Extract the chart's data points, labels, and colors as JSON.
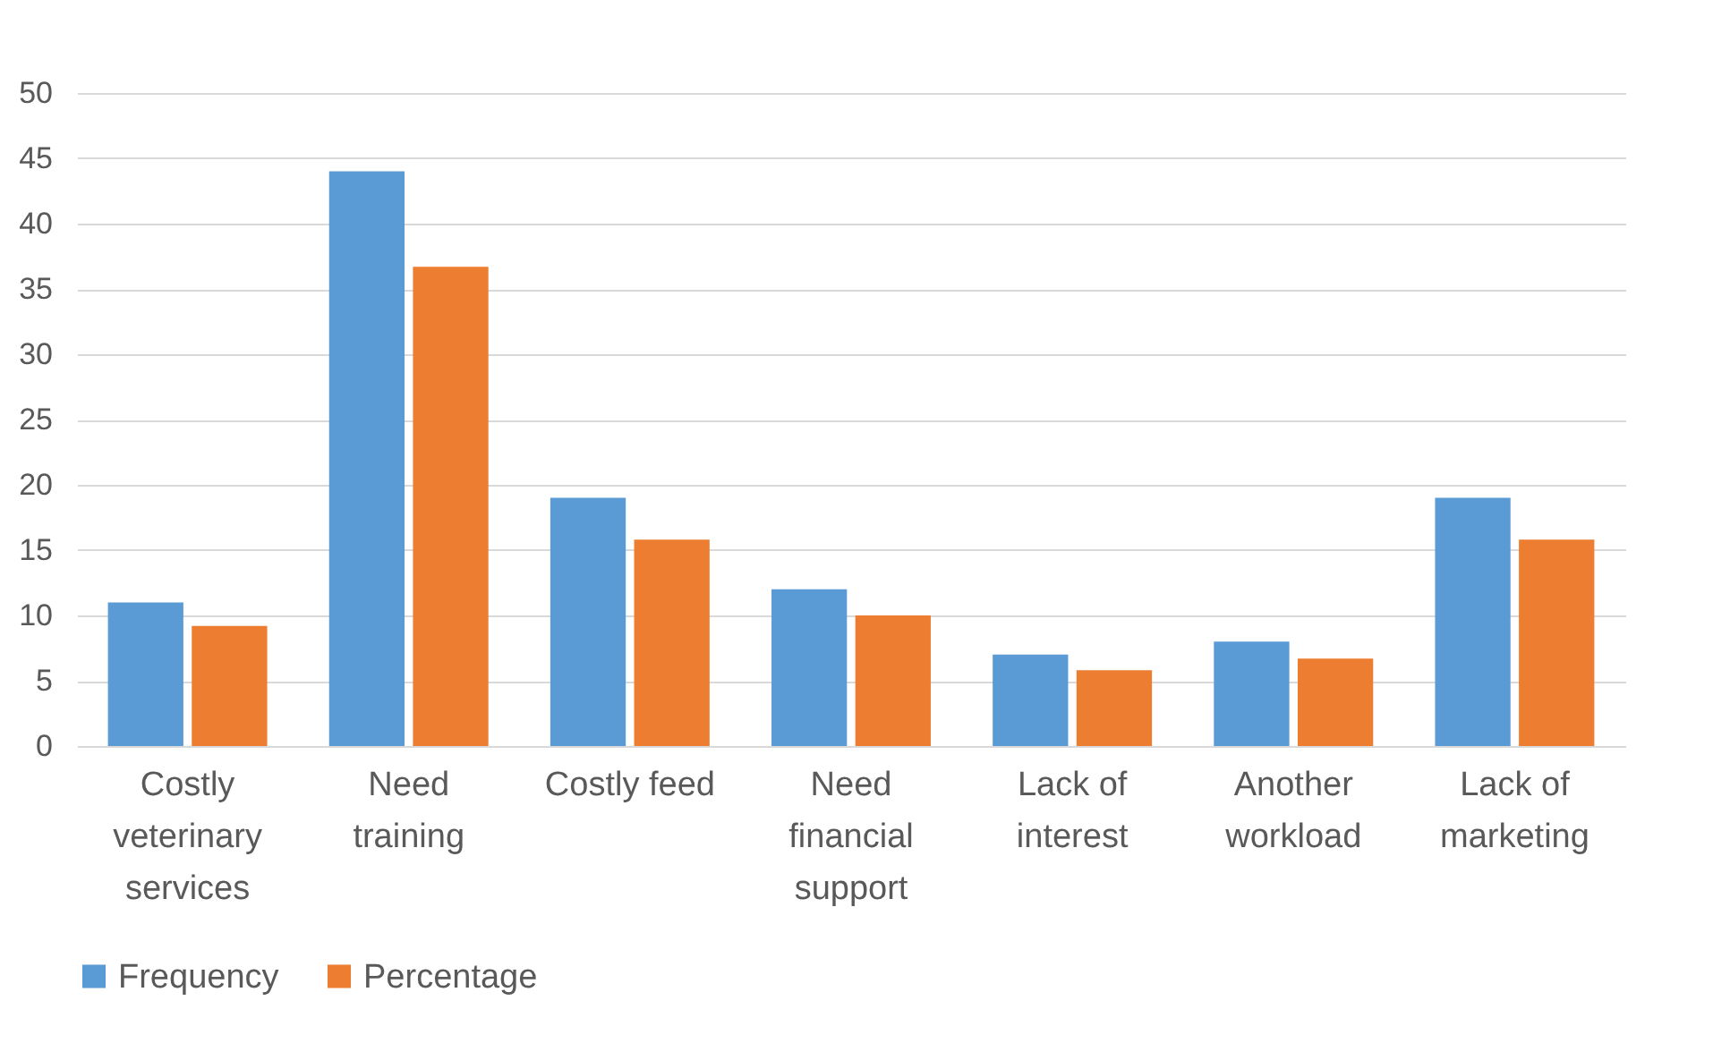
{
  "chart_data": {
    "type": "bar",
    "categories": [
      "Costly veterinary services",
      "Need training",
      "Costly feed",
      "Need financial support",
      "Lack of interest",
      "Another workload",
      "Lack of marketing"
    ],
    "series": [
      {
        "name": "Frequency",
        "color": "#5b9bd5",
        "values": [
          11,
          44,
          19,
          12,
          7,
          8,
          19
        ]
      },
      {
        "name": "Percentage",
        "color": "#ed7d31",
        "values": [
          9.2,
          36.7,
          15.8,
          10,
          5.8,
          6.7,
          15.8
        ]
      }
    ],
    "ylim": [
      0,
      50
    ],
    "yticks": [
      0,
      5,
      10,
      15,
      20,
      25,
      30,
      35,
      40,
      45,
      50
    ],
    "grid": "y",
    "legend": "bottom"
  }
}
